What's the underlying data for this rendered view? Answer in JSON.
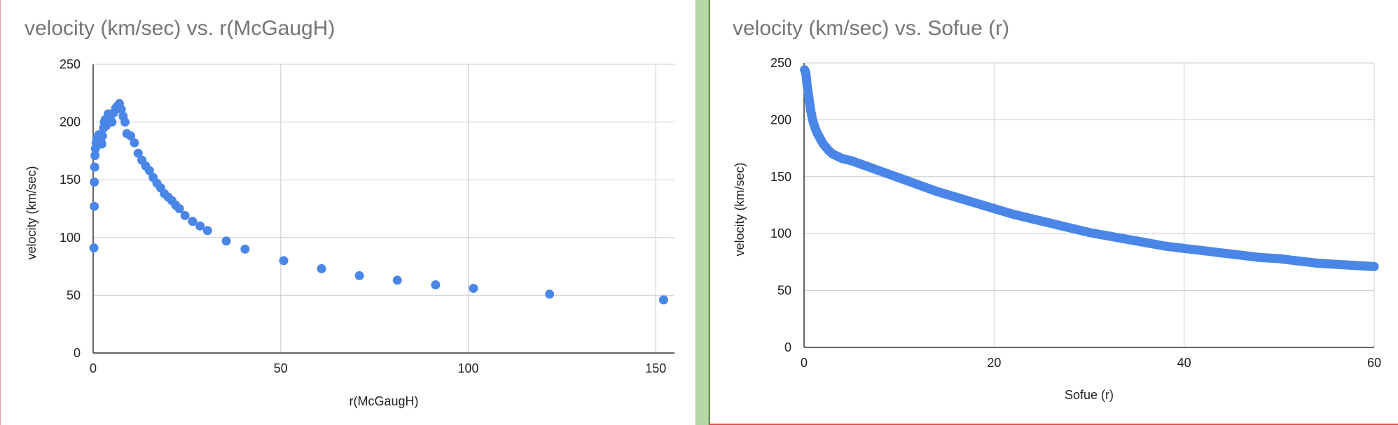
{
  "colors": {
    "series": "#4a86e8",
    "grid": "#cccccc",
    "axis": "#333333",
    "title": "#757575",
    "divider": "#b7d7a8",
    "border": "#d9534f"
  },
  "chart_data": [
    {
      "type": "scatter",
      "title": "velocity (km/sec) vs. r(McGaugH)",
      "xlabel": "r(McGaugH)",
      "ylabel": "velocity (km/sec)",
      "xlim": [
        0,
        155
      ],
      "ylim": [
        0,
        250
      ],
      "xticks": [
        "0",
        "50",
        "100",
        "150"
      ],
      "yticks": [
        "0",
        "50",
        "100",
        "150",
        "200",
        "250"
      ],
      "grid": true,
      "legend": "none",
      "series": [
        {
          "x": [
            0.2,
            0.3,
            0.3,
            0.4,
            0.5,
            0.6,
            0.8,
            1.0,
            1.2,
            1.5,
            1.8,
            2.0,
            2.3,
            2.5,
            2.8,
            3.0,
            3.2,
            3.5,
            4.0,
            4.5,
            5.0,
            5.5,
            6.0,
            6.5,
            7.0,
            7.5,
            8.0,
            8.5,
            9.0,
            10.0,
            11.0,
            12.0,
            13.0,
            14.0,
            15.0,
            16.0,
            17.0,
            18.0,
            19.0,
            20.0,
            21.0,
            22.0,
            23.0,
            24.5,
            26.5,
            28.5,
            30.5,
            35.5,
            40.5,
            50.8,
            60.9,
            71.0,
            81.1,
            91.3,
            101.4,
            121.7,
            152.1
          ],
          "y": [
            91,
            127,
            148,
            161,
            171,
            177,
            182,
            186,
            183,
            189,
            185,
            184,
            181,
            188,
            195,
            200,
            202,
            197,
            207,
            203,
            200,
            208,
            212,
            214,
            216,
            211,
            205,
            200,
            190,
            188,
            182,
            173,
            167,
            162,
            158,
            152,
            147,
            143,
            138,
            135,
            132,
            128,
            125,
            119,
            114,
            110,
            106,
            97,
            90,
            80,
            73,
            67,
            63,
            59,
            56,
            51,
            46
          ]
        }
      ]
    },
    {
      "type": "scatter",
      "title": "velocity (km/sec) vs. Sofue (r)",
      "xlabel": "Sofue (r)",
      "ylabel": "velocity (km/sec)",
      "xlim": [
        0,
        60
      ],
      "ylim": [
        0,
        250
      ],
      "xticks": [
        "0",
        "20",
        "40",
        "60"
      ],
      "yticks": [
        "0",
        "50",
        "100",
        "150",
        "200",
        "250"
      ],
      "grid": true,
      "legend": "none",
      "series": [
        {
          "x": [
            0.05,
            0.1,
            0.15,
            0.2,
            0.25,
            0.3,
            0.4,
            0.5,
            0.6,
            0.7,
            0.8,
            0.9,
            1.0,
            1.2,
            1.4,
            1.6,
            1.8,
            2.0,
            2.3,
            2.6,
            3.0,
            3.5,
            4.0,
            5.0,
            6.0,
            7.0,
            8.0,
            10.0,
            12.0,
            14.0,
            16.0,
            18.0,
            20.0,
            22.0,
            24.0,
            26.0,
            28.0,
            30.0,
            32.0,
            34.0,
            36.0,
            38.0,
            40.0,
            42.0,
            44.0,
            46.0,
            48.0,
            50.0,
            52.0,
            54.0,
            56.0,
            58.0,
            60.0
          ],
          "y": [
            244,
            243,
            242,
            240,
            236,
            232,
            226,
            220,
            214,
            208,
            204,
            200,
            197,
            192,
            188,
            185,
            182,
            179,
            176,
            173,
            170,
            168,
            166,
            164,
            161,
            158,
            155,
            149,
            143,
            137,
            132,
            127,
            122,
            117,
            113,
            109,
            105,
            101,
            98,
            95,
            92,
            89,
            87,
            85,
            83,
            81,
            79,
            78,
            76,
            74,
            73,
            72,
            71
          ]
        }
      ]
    }
  ]
}
